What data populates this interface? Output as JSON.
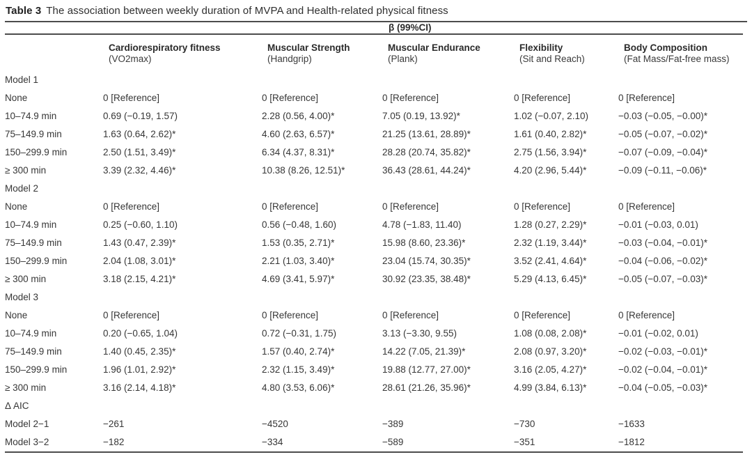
{
  "title": {
    "label": "Table 3",
    "text": "The association between weekly duration of MVPA and Health-related physical fitness"
  },
  "table": {
    "spanner": "β (99%CI)",
    "stub_header": "",
    "columns": [
      {
        "name": "Cardiorespiratory fitness",
        "sub": "(VO2max)"
      },
      {
        "name": "Muscular Strength",
        "sub": "(Handgrip)"
      },
      {
        "name": "Muscular Endurance",
        "sub": "(Plank)"
      },
      {
        "name": "Flexibility",
        "sub": "(Sit and Reach)"
      },
      {
        "name": "Body Composition",
        "sub": "(Fat Mass/Fat-free mass)"
      }
    ],
    "sections": [
      {
        "label": "Model 1",
        "rows": [
          {
            "label": "None",
            "cells": [
              "0 [Reference]",
              "0 [Reference]",
              "0 [Reference]",
              "0 [Reference]",
              "0 [Reference]"
            ]
          },
          {
            "label": "10–74.9 min",
            "cells": [
              "0.69 (−0.19, 1.57)",
              "2.28 (0.56, 4.00)*",
              "7.05 (0.19, 13.92)*",
              "1.02 (−0.07, 2.10)",
              "−0.03 (−0.05, −0.00)*"
            ]
          },
          {
            "label": "75–149.9 min",
            "cells": [
              "1.63 (0.64, 2.62)*",
              "4.60 (2.63, 6.57)*",
              "21.25 (13.61, 28.89)*",
              "1.61 (0.40, 2.82)*",
              "−0.05 (−0.07, −0.02)*"
            ]
          },
          {
            "label": "150–299.9 min",
            "cells": [
              "2.50 (1.51, 3.49)*",
              "6.34 (4.37, 8.31)*",
              "28.28 (20.74, 35.82)*",
              "2.75 (1.56, 3.94)*",
              "−0.07 (−0.09, −0.04)*"
            ]
          },
          {
            "label": "≥ 300 min",
            "cells": [
              "3.39 (2.32, 4.46)*",
              "10.38 (8.26, 12.51)*",
              "36.43 (28.61, 44.24)*",
              "4.20 (2.96, 5.44)*",
              "−0.09 (−0.11, −0.06)*"
            ]
          }
        ]
      },
      {
        "label": "Model 2",
        "rows": [
          {
            "label": "None",
            "cells": [
              "0 [Reference]",
              "0 [Reference]",
              "0 [Reference]",
              "0 [Reference]",
              "0 [Reference]"
            ]
          },
          {
            "label": "10–74.9 min",
            "cells": [
              "0.25 (−0.60, 1.10)",
              "0.56 (−0.48, 1.60)",
              "4.78 (−1.83, 11.40)",
              "1.28 (0.27, 2.29)*",
              "−0.01 (−0.03, 0.01)"
            ]
          },
          {
            "label": "75–149.9 min",
            "cells": [
              "1.43 (0.47, 2.39)*",
              "1.53 (0.35, 2.71)*",
              "15.98 (8.60, 23.36)*",
              "2.32 (1.19, 3.44)*",
              "−0.03 (−0.04, −0.01)*"
            ]
          },
          {
            "label": "150–299.9 min",
            "cells": [
              "2.04 (1.08, 3.01)*",
              "2.21 (1.03, 3.40)*",
              "23.04 (15.74, 30.35)*",
              "3.52 (2.41, 4.64)*",
              "−0.04 (−0.06, −0.02)*"
            ]
          },
          {
            "label": "≥ 300 min",
            "cells": [
              "3.18 (2.15, 4.21)*",
              "4.69 (3.41, 5.97)*",
              "30.92 (23.35, 38.48)*",
              "5.29 (4.13, 6.45)*",
              "−0.05 (−0.07, −0.03)*"
            ]
          }
        ]
      },
      {
        "label": "Model 3",
        "rows": [
          {
            "label": "None",
            "cells": [
              "0 [Reference]",
              "0 [Reference]",
              "0 [Reference]",
              "0 [Reference]",
              "0 [Reference]"
            ]
          },
          {
            "label": "10–74.9 min",
            "cells": [
              "0.20 (−0.65, 1.04)",
              "0.72 (−0.31, 1.75)",
              "3.13 (−3.30, 9.55)",
              "1.08 (0.08, 2.08)*",
              "−0.01 (−0.02, 0.01)"
            ]
          },
          {
            "label": "75–149.9 min",
            "cells": [
              "1.40 (0.45, 2.35)*",
              "1.57 (0.40, 2.74)*",
              "14.22 (7.05, 21.39)*",
              "2.08 (0.97, 3.20)*",
              "−0.02 (−0.03, −0.01)*"
            ]
          },
          {
            "label": "150–299.9 min",
            "cells": [
              "1.96 (1.01, 2.92)*",
              "2.32 (1.15, 3.49)*",
              "19.88 (12.77, 27.00)*",
              "3.16 (2.05, 4.27)*",
              "−0.02 (−0.04, −0.01)*"
            ]
          },
          {
            "label": "≥ 300 min",
            "cells": [
              "3.16 (2.14, 4.18)*",
              "4.80 (3.53, 6.06)*",
              "28.61 (21.26, 35.96)*",
              "4.99 (3.84, 6.13)*",
              "−0.04 (−0.05, −0.03)*"
            ]
          }
        ]
      },
      {
        "label": "Δ AIC",
        "rows": [
          {
            "label": "Model 2−1",
            "cells": [
              "−261",
              "−4520",
              "−389",
              "−730",
              "−1633"
            ]
          },
          {
            "label": "Model 3−2",
            "cells": [
              "−182",
              "−334",
              "−589",
              "−351",
              "−1812"
            ]
          }
        ]
      }
    ]
  }
}
